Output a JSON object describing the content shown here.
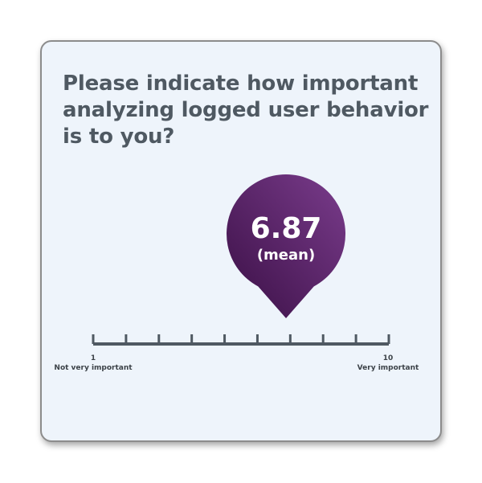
{
  "chart_data": {
    "type": "rating-scale",
    "question": "Please indicate how important analyzing logged user behavior is to you?",
    "scale_min": 1,
    "scale_max": 10,
    "min_value_label": "1",
    "max_value_label": "10",
    "min_anchor": "Not very important",
    "max_anchor": "Very important",
    "value": 6.87,
    "value_label": "6.87",
    "value_caption": "(mean)",
    "colors": {
      "pin_light": "#7a3c8c",
      "pin_dark": "#3a0f45",
      "axis": "#4f5962"
    }
  }
}
